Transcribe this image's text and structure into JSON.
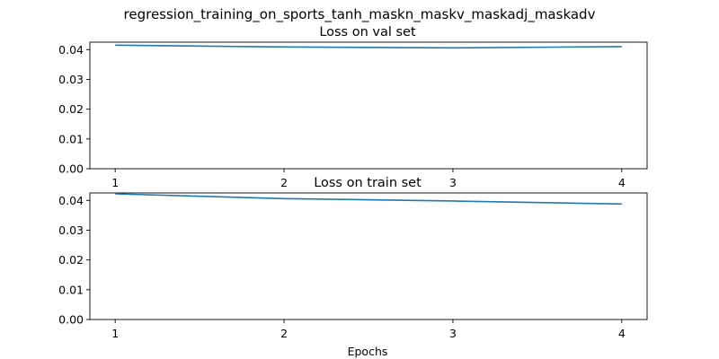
{
  "figure": {
    "suptitle": "regression_training_on_sports_tanh_maskn_maskv_maskadj_maskadv"
  },
  "chart_data": [
    {
      "type": "line",
      "title": "Loss on val set",
      "xlabel": "",
      "ylabel": "",
      "x": [
        1,
        2,
        3,
        4
      ],
      "xticks": [
        "1",
        "2",
        "3",
        "4"
      ],
      "yticks": [
        "0.00",
        "0.01",
        "0.02",
        "0.03",
        "0.04"
      ],
      "xlim": [
        0.85,
        4.15
      ],
      "ylim": [
        0,
        0.0425
      ],
      "grid": false,
      "series": [
        {
          "values": [
            0.0415,
            0.0409,
            0.0406,
            0.041
          ],
          "color": "#1f77b4"
        }
      ]
    },
    {
      "type": "line",
      "title": "Loss on train set",
      "xlabel": "Epochs",
      "ylabel": "",
      "x": [
        1,
        2,
        3,
        4
      ],
      "xticks": [
        "1",
        "2",
        "3",
        "4"
      ],
      "yticks": [
        "0.00",
        "0.01",
        "0.02",
        "0.03",
        "0.04"
      ],
      "xlim": [
        0.85,
        4.15
      ],
      "ylim": [
        0,
        0.0425
      ],
      "grid": false,
      "series": [
        {
          "values": [
            0.0422,
            0.0406,
            0.0398,
            0.0388
          ],
          "color": "#1f77b4"
        }
      ]
    }
  ]
}
